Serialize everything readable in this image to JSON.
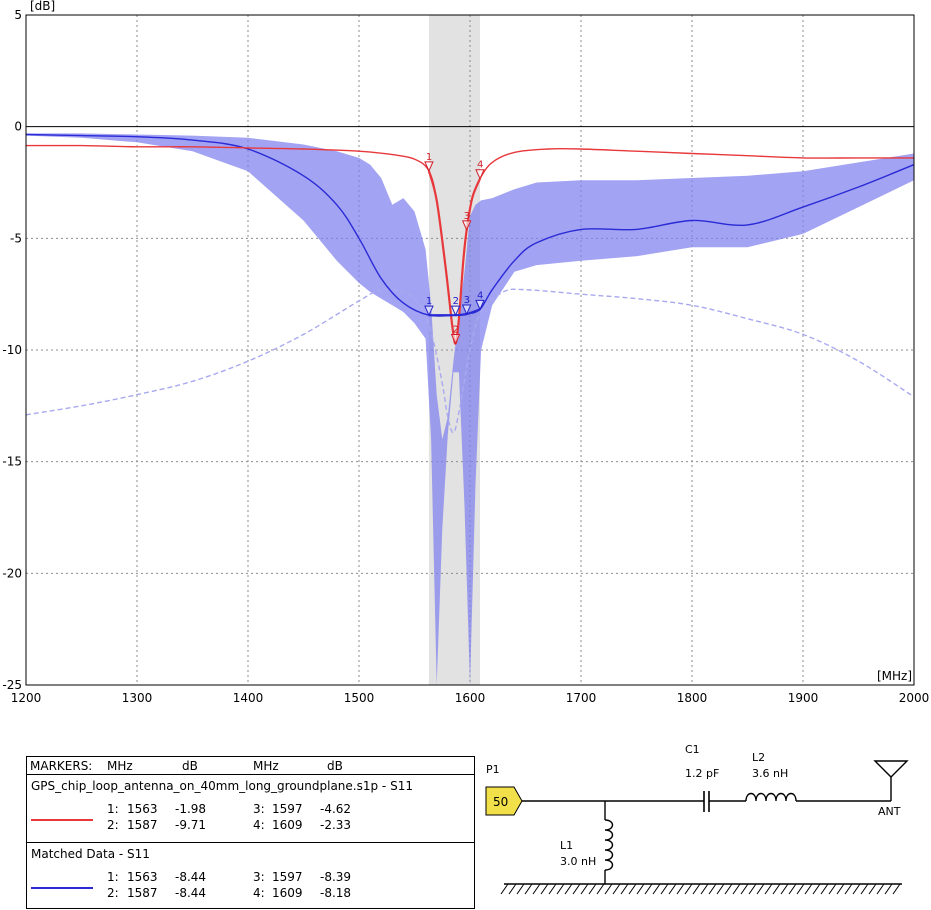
{
  "chart_data": {
    "type": "line",
    "ylabel": "[dB]",
    "xlabel": "[MHz]",
    "xlim": [
      1200,
      2000
    ],
    "ylim": [
      -25,
      5
    ],
    "x_ticks": [
      1200,
      1300,
      1400,
      1500,
      1600,
      1700,
      1800,
      1900,
      2000
    ],
    "y_ticks": [
      5,
      0,
      -5,
      -10,
      -15,
      -20,
      -25
    ],
    "grid": true,
    "highlight_band": [
      1563,
      1609
    ],
    "series": [
      {
        "name": "GPS_chip_loop_antenna_on_40mm_long_groundplane.s1p - S11",
        "color": "#e8383b",
        "style": "solid",
        "x": [
          1200,
          1250,
          1300,
          1350,
          1400,
          1450,
          1500,
          1530,
          1550,
          1563,
          1570,
          1578,
          1584,
          1587,
          1590,
          1594,
          1597,
          1602,
          1609,
          1620,
          1640,
          1670,
          1700,
          1750,
          1800,
          1850,
          1900,
          1950,
          2000
        ],
        "y": [
          -0.85,
          -0.85,
          -0.9,
          -0.9,
          -0.95,
          -1.0,
          -1.1,
          -1.25,
          -1.45,
          -1.98,
          -3.3,
          -6.3,
          -8.9,
          -9.71,
          -8.6,
          -6.0,
          -4.62,
          -3.2,
          -2.33,
          -1.6,
          -1.15,
          -1.0,
          -1.0,
          -1.1,
          -1.2,
          -1.3,
          -1.4,
          -1.4,
          -1.4
        ]
      },
      {
        "name": "Matched Data - S11",
        "color": "#2a2ad6",
        "style": "solid",
        "x": [
          1200,
          1250,
          1300,
          1350,
          1400,
          1450,
          1480,
          1500,
          1520,
          1540,
          1563,
          1587,
          1597,
          1609,
          1620,
          1640,
          1660,
          1700,
          1750,
          1800,
          1850,
          1900,
          1950,
          2000
        ],
        "y": [
          -0.35,
          -0.4,
          -0.45,
          -0.6,
          -1.0,
          -2.2,
          -3.5,
          -5.0,
          -6.8,
          -7.9,
          -8.44,
          -8.44,
          -8.39,
          -8.18,
          -7.3,
          -6.0,
          -5.2,
          -4.6,
          -4.6,
          -4.2,
          -4.4,
          -3.6,
          -2.7,
          -1.7
        ]
      },
      {
        "name": "",
        "color": "#a9a9f0",
        "style": "dashed",
        "x": [
          1200,
          1250,
          1300,
          1350,
          1400,
          1450,
          1500,
          1520,
          1540,
          1555,
          1565,
          1575,
          1580,
          1585,
          1590,
          1600,
          1610,
          1630,
          1650,
          1700,
          1750,
          1800,
          1850,
          1900,
          1950,
          2000
        ],
        "y": [
          -12.9,
          -12.5,
          -12.0,
          -11.4,
          -10.5,
          -9.3,
          -7.8,
          -7.3,
          -7.4,
          -8.0,
          -9.2,
          -11.5,
          -13.0,
          -13.7,
          -12.8,
          -10.0,
          -8.3,
          -7.4,
          -7.3,
          -7.5,
          -7.7,
          -8.0,
          -8.6,
          -9.3,
          -10.5,
          -12.1
        ]
      }
    ],
    "envelope": {
      "name": "",
      "color": "#8080ef",
      "x": [
        1200,
        1250,
        1300,
        1350,
        1400,
        1450,
        1480,
        1500,
        1510,
        1520,
        1530,
        1540,
        1550,
        1560,
        1565,
        1570,
        1575,
        1580,
        1585,
        1590,
        1595,
        1600,
        1605,
        1610,
        1620,
        1640,
        1660,
        1700,
        1750,
        1800,
        1850,
        1900,
        1950,
        2000
      ],
      "upper": [
        -0.3,
        -0.3,
        -0.35,
        -0.4,
        -0.5,
        -0.8,
        -1.1,
        -1.4,
        -1.7,
        -2.3,
        -3.5,
        -3.2,
        -3.8,
        -5.5,
        -8.0,
        -12.0,
        -14.0,
        -13.0,
        -10.5,
        -8.5,
        -6.5,
        -4.0,
        -3.5,
        -3.3,
        -3.2,
        -2.8,
        -2.5,
        -2.4,
        -2.4,
        -2.3,
        -2.2,
        -2.0,
        -1.6,
        -1.2
      ],
      "lower": [
        -0.4,
        -0.5,
        -0.7,
        -1.1,
        -2.0,
        -4.2,
        -6.0,
        -7.0,
        -7.4,
        -7.7,
        -8.0,
        -8.3,
        -8.8,
        -9.5,
        -14.0,
        -25.0,
        -18.0,
        -13.8,
        -11.0,
        -11.0,
        -17.0,
        -25.0,
        -16.0,
        -10.0,
        -8.0,
        -6.5,
        -6.2,
        -6.0,
        -5.8,
        -5.4,
        -5.4,
        -4.8,
        -3.6,
        -2.4
      ]
    },
    "markers": {
      "trace1": [
        {
          "id": "1",
          "x": 1563,
          "y": -1.98
        },
        {
          "id": "2",
          "x": 1587,
          "y": -9.71
        },
        {
          "id": "3",
          "x": 1597,
          "y": -4.62
        },
        {
          "id": "4",
          "x": 1609,
          "y": -2.33
        }
      ],
      "trace2": [
        {
          "id": "1",
          "x": 1563,
          "y": -8.44
        },
        {
          "id": "2",
          "x": 1587,
          "y": -8.44
        },
        {
          "id": "3",
          "x": 1597,
          "y": -8.39
        },
        {
          "id": "4",
          "x": 1609,
          "y": -8.18
        }
      ]
    }
  },
  "legend": {
    "header": {
      "markers": "MARKERS:",
      "mhz1": "MHz",
      "db1": "dB",
      "mhz2": "MHz",
      "db2": "dB"
    },
    "sections": [
      {
        "title": "GPS_chip_loop_antenna_on_40mm_long_groundplane.s1p - S11",
        "color": "#e8383b",
        "rows": [
          {
            "a": "1:",
            "b": "1563",
            "c": "-1.98",
            "d": "3:",
            "e": "1597",
            "f": "-4.62"
          },
          {
            "a": "2:",
            "b": "1587",
            "c": "-9.71",
            "d": "4:",
            "e": "1609",
            "f": "-2.33"
          }
        ]
      },
      {
        "title": "Matched Data - S11",
        "color": "#2a2ad6",
        "rows": [
          {
            "a": "1:",
            "b": "1563",
            "c": "-8.44",
            "d": "3:",
            "e": "1597",
            "f": "-8.39"
          },
          {
            "a": "2:",
            "b": "1587",
            "c": "-8.44",
            "d": "4:",
            "e": "1609",
            "f": "-8.18"
          }
        ]
      }
    ]
  },
  "schematic": {
    "port_label": "P1",
    "port_value": "50",
    "c1_name": "C1",
    "c1_value": "1.2 pF",
    "l2_name": "L2",
    "l2_value": "3.6 nH",
    "l1_name": "L1",
    "l1_value": "3.0 nH",
    "ant_label": "ANT",
    "port_color": "#f2e04a"
  }
}
